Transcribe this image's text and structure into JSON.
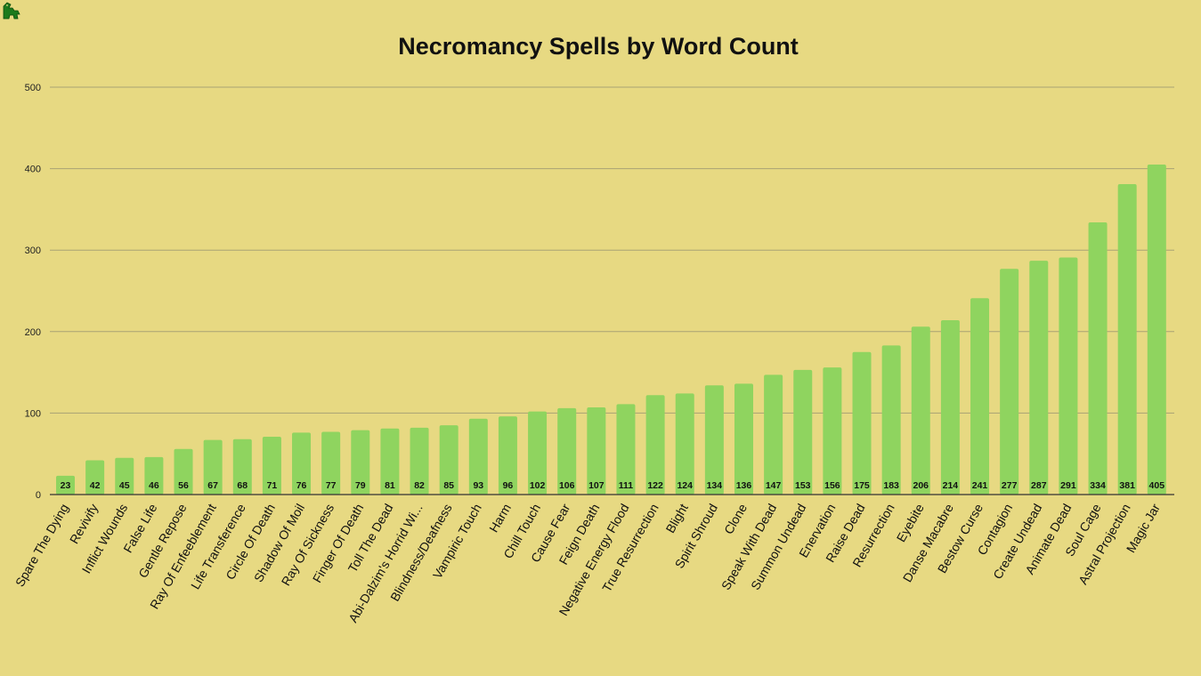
{
  "app_icon": "dragon-logo-icon",
  "colors": {
    "background": "#e7d982",
    "bar": "#8fd45f",
    "grid": "#a8a274",
    "icon": "#1c7a1c"
  },
  "chart_data": {
    "type": "bar",
    "title": "Necromancy Spells by Word Count",
    "xlabel": "",
    "ylabel": "",
    "ylim": [
      0,
      500
    ],
    "yticks": [
      0,
      100,
      200,
      300,
      400,
      500
    ],
    "grid": true,
    "legend": "none",
    "categories": [
      "Spare The Dying",
      "Revivify",
      "Inflict Wounds",
      "False Life",
      "Gentle Repose",
      "Ray Of Enfeeblement",
      "Life Transference",
      "Circle Of Death",
      "Shadow Of Moil",
      "Ray Of Sickness",
      "Finger Of Death",
      "Toll The Dead",
      "Abi-Dalzim's Horrid Wi...",
      "Blindness/Deafness",
      "Vampiric Touch",
      "Harm",
      "Chill Touch",
      "Cause Fear",
      "Feign Death",
      "Negative Energy Flood",
      "True Resurrection",
      "Blight",
      "Spirit Shroud",
      "Clone",
      "Speak With Dead",
      "Summon Undead",
      "Enervation",
      "Raise Dead",
      "Resurrection",
      "Eyebite",
      "Danse Macabre",
      "Bestow Curse",
      "Contagion",
      "Create Undead",
      "Animate Dead",
      "Soul Cage",
      "Astral Projection",
      "Magic Jar"
    ],
    "values": [
      23,
      42,
      45,
      46,
      56,
      67,
      68,
      71,
      76,
      77,
      79,
      81,
      82,
      85,
      93,
      96,
      102,
      106,
      107,
      111,
      122,
      124,
      134,
      136,
      147,
      153,
      156,
      175,
      183,
      206,
      214,
      241,
      277,
      287,
      291,
      334,
      381,
      405
    ]
  }
}
